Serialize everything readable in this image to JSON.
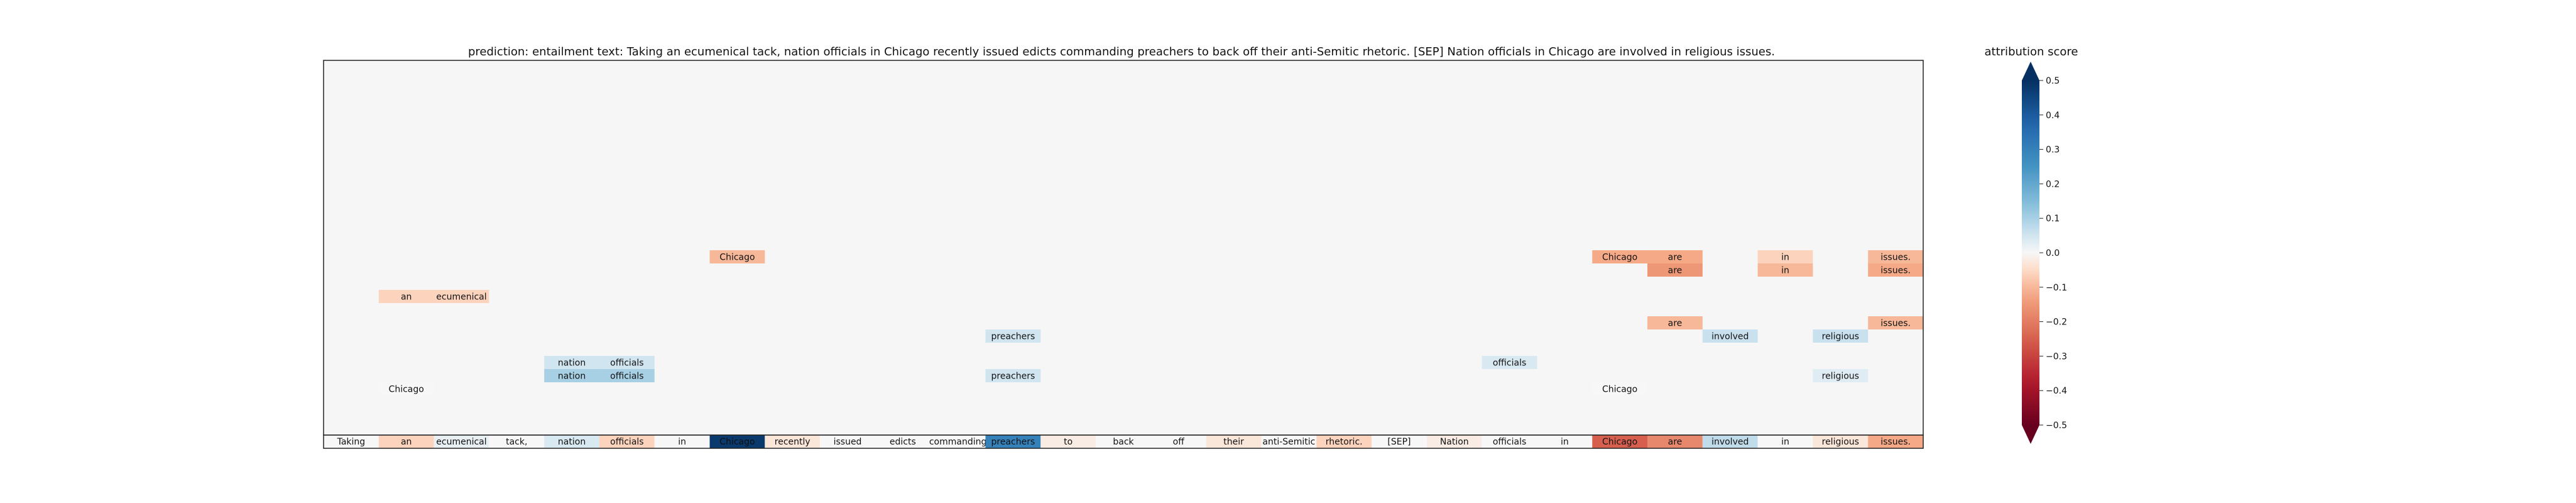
{
  "chart_data": {
    "type": "heatmap",
    "title": "prediction:  entailment     text:  Taking an ecumenical tack, nation officials in Chicago recently issued edicts commanding preachers to back off their anti-Semitic rhetoric. [SEP] Nation officials in Chicago are involved in religious issues.",
    "tokens": [
      "Taking",
      "an",
      "ecumenical",
      "tack,",
      "nation",
      "officials",
      "in",
      "Chicago",
      "recently",
      "issued",
      "edicts",
      "commanding",
      "preachers",
      "to",
      "back",
      "off",
      "their",
      "anti-Semitic",
      "rhetoric.",
      "[SEP]",
      "Nation",
      "officials",
      "in",
      "Chicago",
      "are",
      "involved",
      "in",
      "religious",
      "issues."
    ],
    "token_scores": [
      0.0,
      -0.06,
      0.02,
      0.0,
      0.04,
      -0.06,
      0.0,
      0.48,
      -0.03,
      0.0,
      0.0,
      0.0,
      0.3,
      -0.02,
      0.0,
      0.0,
      -0.03,
      0.0,
      -0.06,
      0.0,
      -0.02,
      0.0,
      0.0,
      -0.25,
      -0.18,
      0.07,
      0.0,
      -0.03,
      -0.12
    ],
    "cells": [
      {
        "col": 1,
        "row": 3,
        "text": "Chicago",
        "score": 0.0
      },
      {
        "col": 23,
        "row": 3,
        "text": "Chicago",
        "score": 0.0
      },
      {
        "col": 4,
        "row": 4,
        "text": "nation",
        "score": 0.1
      },
      {
        "col": 5,
        "row": 4,
        "text": "officials",
        "score": 0.1
      },
      {
        "col": 12,
        "row": 4,
        "text": "preachers",
        "score": 0.05
      },
      {
        "col": 27,
        "row": 4,
        "text": "religious",
        "score": 0.03
      },
      {
        "col": 4,
        "row": 5,
        "text": "nation",
        "score": 0.05
      },
      {
        "col": 5,
        "row": 5,
        "text": "officials",
        "score": 0.05
      },
      {
        "col": 21,
        "row": 5,
        "text": "officials",
        "score": 0.04
      },
      {
        "col": 12,
        "row": 7,
        "text": "preachers",
        "score": 0.05
      },
      {
        "col": 25,
        "row": 7,
        "text": "involved",
        "score": 0.06
      },
      {
        "col": 27,
        "row": 7,
        "text": "religious",
        "score": 0.06
      },
      {
        "col": 24,
        "row": 8,
        "text": "are",
        "score": -0.1
      },
      {
        "col": 28,
        "row": 8,
        "text": "issues.",
        "score": -0.1
      },
      {
        "col": 1,
        "row": 10,
        "text": "an",
        "score": -0.06
      },
      {
        "col": 2,
        "row": 10,
        "text": "ecumenical",
        "score": -0.06
      },
      {
        "col": 24,
        "row": 12,
        "text": "are",
        "score": -0.15
      },
      {
        "col": 26,
        "row": 12,
        "text": "in",
        "score": -0.1
      },
      {
        "col": 28,
        "row": 12,
        "text": "issues.",
        "score": -0.12
      },
      {
        "col": 7,
        "row": 13,
        "text": "Chicago",
        "score": -0.1
      },
      {
        "col": 23,
        "row": 13,
        "text": "Chicago",
        "score": -0.12
      },
      {
        "col": 24,
        "row": 13,
        "text": "are",
        "score": -0.12
      },
      {
        "col": 26,
        "row": 13,
        "text": "in",
        "score": -0.06
      },
      {
        "col": 28,
        "row": 13,
        "text": "issues.",
        "score": -0.1
      }
    ],
    "colorbar": {
      "title": "attribution score",
      "min": -0.5,
      "max": 0.5,
      "ticks": [
        0.5,
        0.4,
        0.3,
        0.2,
        0.1,
        0.0,
        -0.1,
        -0.2,
        -0.3,
        -0.4,
        -0.5
      ],
      "tick_labels": [
        "0.5",
        "0.4",
        "0.3",
        "0.2",
        "0.1",
        "0.0",
        "−0.1",
        "−0.2",
        "−0.3",
        "−0.4",
        "−0.5"
      ],
      "colormap": "RdBu"
    },
    "background_color": "#f5f6f5"
  }
}
